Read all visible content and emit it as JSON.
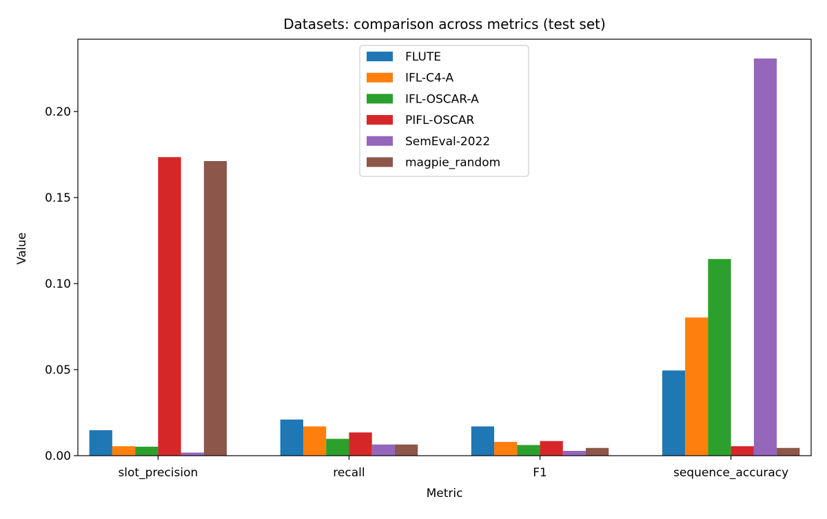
{
  "chart_data": {
    "type": "bar",
    "title": "Datasets: comparison across metrics (test set)",
    "xlabel": "Metric",
    "ylabel": "Value",
    "categories": [
      "slot_precision",
      "recall",
      "F1",
      "sequence_accuracy"
    ],
    "ylim": [
      0,
      0.242
    ],
    "yticks": [
      0.0,
      0.05,
      0.1,
      0.15,
      0.2
    ],
    "ytick_labels": [
      "0.00",
      "0.05",
      "0.10",
      "0.15",
      "0.20"
    ],
    "legend_position": "upper-center",
    "series": [
      {
        "name": "FLUTE",
        "color": "#1f77b4",
        "values": [
          0.0148,
          0.021,
          0.017,
          0.0495
        ]
      },
      {
        "name": "IFL-C4-A",
        "color": "#ff7f0e",
        "values": [
          0.0055,
          0.017,
          0.008,
          0.0803
        ]
      },
      {
        "name": "IFL-OSCAR-A",
        "color": "#2ca02c",
        "values": [
          0.0052,
          0.0098,
          0.0062,
          0.1143
        ]
      },
      {
        "name": "PIFL-OSCAR",
        "color": "#d62728",
        "values": [
          0.1735,
          0.0135,
          0.0085,
          0.0055
        ]
      },
      {
        "name": "SemEval-2022",
        "color": "#9467bd",
        "values": [
          0.0018,
          0.0065,
          0.0028,
          0.2308
        ]
      },
      {
        "name": "magpie_random",
        "color": "#8c564b",
        "values": [
          0.1712,
          0.0065,
          0.0045,
          0.0045
        ]
      }
    ]
  }
}
